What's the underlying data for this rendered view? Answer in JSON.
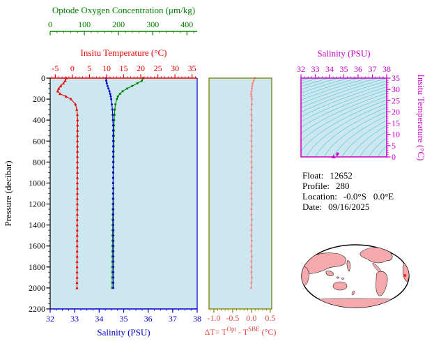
{
  "colors": {
    "page_bg": "#ffffff",
    "plot_bg": "#cde7f1",
    "oxygen": "#008200",
    "temperature": "#e60000",
    "pressure": "#000000",
    "salinity": "#0000cd",
    "delta_frame": "#7f7f00",
    "delta_text": "#e84545",
    "delta_curve": "#ff8585",
    "ts": "#cc00cc",
    "contour": "#58c8da",
    "map_land": "#f5a9ad",
    "map_outline": "#000000",
    "float_marker": "#ff2020"
  },
  "main_plot": {
    "oxygen_axis": {
      "label": "Optode Oxygen Concentration (μm/kg)",
      "min": 0,
      "max": 430,
      "ticks": [
        0,
        100,
        200,
        300,
        400
      ],
      "minor_step": 20,
      "color": "#008200"
    },
    "temperature_axis": {
      "label": "Insitu Temperature (°C)",
      "min": -6.5,
      "max": 36.5,
      "ticks": [
        -5,
        0,
        5,
        10,
        15,
        20,
        25,
        30,
        35
      ],
      "minor_step": 1,
      "color": "#e60000"
    },
    "pressure_axis": {
      "label": "Pressure (decibar)",
      "min": 0,
      "max": 2200,
      "ticks": [
        0,
        200,
        400,
        600,
        800,
        1000,
        1200,
        1400,
        1600,
        1800,
        2000,
        2200
      ],
      "minor_step": 50,
      "color": "#000000"
    },
    "salinity_axis": {
      "label": "Salinity (PSU)",
      "min": 32,
      "max": 38,
      "ticks": [
        32,
        33,
        34,
        35,
        36,
        37,
        38
      ],
      "minor_step": 0.25,
      "color": "#0000cd"
    }
  },
  "delta_plot": {
    "axis": {
      "min": -1.13,
      "max": 0.54,
      "ticks": [
        -1.0,
        -0.5,
        0.0,
        0.5
      ],
      "minor_step": 0.1,
      "decimals": 1,
      "color": "#7f7f00"
    },
    "title_parts": {
      "p1": "ΔT= T",
      "sup1": "Opt",
      "p2": " - T",
      "sup2": "SBE",
      "p3": " (°C)"
    }
  },
  "ts_plot": {
    "salinity_axis": {
      "label": "Salinity (PSU)",
      "min": 32,
      "max": 38,
      "ticks": [
        32,
        33,
        34,
        35,
        36,
        37,
        38
      ],
      "minor_step": 0.25,
      "color": "#cc00cc"
    },
    "temperature_axis": {
      "label": "Insitu Temperature (°C)",
      "min": 0,
      "max": 35,
      "ticks": [
        0,
        5,
        10,
        15,
        20,
        25,
        30,
        35
      ],
      "minor_step": 1,
      "color": "#cc00cc"
    },
    "sigma_contours": {
      "min": 18,
      "max": 30,
      "step": 0.5
    }
  },
  "info": {
    "float_label": "Float:",
    "float_value": "12652",
    "profile_label": "Profile:",
    "profile_value": "280",
    "location_label": "Location:",
    "location_lat": "-0.0°S",
    "location_lon": "0.0°E",
    "date_label": "Date:",
    "date_value": "09/16/2025"
  },
  "chart_data": [
    {
      "id": "profile-plot",
      "type": "line",
      "title": "Temperature, Salinity and Oxygen profiles vs Pressure",
      "y_axis": "Pressure (decibar)",
      "ylim": [
        0,
        2200
      ],
      "pressure_dbar": [
        0,
        25,
        50,
        75,
        100,
        125,
        150,
        175,
        200,
        250,
        300,
        350,
        400,
        450,
        500,
        550,
        600,
        650,
        700,
        750,
        800,
        850,
        900,
        950,
        1000,
        1050,
        1100,
        1150,
        1200,
        1250,
        1300,
        1350,
        1400,
        1450,
        1500,
        1550,
        1600,
        1650,
        1700,
        1750,
        1800,
        1850,
        1900,
        1950,
        2000
      ],
      "series": [
        {
          "name": "Optode Oxygen Concentration (μm/kg)",
          "axis": "oxygen",
          "color": "#008200",
          "marker": "square",
          "xlim": [
            0,
            430
          ],
          "values": [
            272,
            268,
            255,
            240,
            225,
            212,
            204,
            198,
            195,
            191,
            189,
            188,
            187,
            186.5,
            186.3,
            186.1,
            185.9,
            185.7,
            185.5,
            185.3,
            185.1,
            184.9,
            184.7,
            184.5,
            184.3,
            184.1,
            183.9,
            183.7,
            183.5,
            183.3,
            183.1,
            182.9,
            182.7,
            182.5,
            182.4,
            182.3,
            182.2,
            182.1,
            182.0,
            181.9,
            181.8,
            181.7,
            181.6,
            181.5,
            181.4
          ]
        },
        {
          "name": "Salinity (PSU)",
          "axis": "salinity",
          "color": "#0000cd",
          "marker": "circle",
          "xlim": [
            32,
            38
          ],
          "values": [
            34.28,
            34.29,
            34.31,
            34.34,
            34.38,
            34.42,
            34.45,
            34.47,
            34.49,
            34.52,
            34.54,
            34.55,
            34.56,
            34.57,
            34.57,
            34.57,
            34.57,
            34.57,
            34.57,
            34.57,
            34.57,
            34.57,
            34.57,
            34.57,
            34.57,
            34.575,
            34.575,
            34.575,
            34.575,
            34.575,
            34.575,
            34.575,
            34.575,
            34.58,
            34.58,
            34.58,
            34.58,
            34.58,
            34.58,
            34.58,
            34.58,
            34.58,
            34.58,
            34.58,
            34.58
          ]
        },
        {
          "name": "Insitu Temperature (°C)",
          "axis": "temperature",
          "color": "#e60000",
          "marker": "triangle",
          "xlim": [
            -6.5,
            36.5
          ],
          "values": [
            -1.8,
            -2.1,
            -2.6,
            -3.4,
            -4.0,
            -4.3,
            -3.6,
            -1.9,
            -0.4,
            0.9,
            1.3,
            1.45,
            1.5,
            1.5,
            1.5,
            1.49,
            1.49,
            1.48,
            1.48,
            1.47,
            1.47,
            1.46,
            1.46,
            1.45,
            1.45,
            1.44,
            1.44,
            1.43,
            1.43,
            1.42,
            1.42,
            1.41,
            1.41,
            1.4,
            1.4,
            1.39,
            1.39,
            1.38,
            1.38,
            1.37,
            1.37,
            1.36,
            1.36,
            1.35,
            1.35
          ]
        }
      ]
    },
    {
      "id": "delta-t-plot",
      "type": "line",
      "title": "ΔT = T(Opt) - T(SBE) (°C) vs Pressure",
      "xlim": [
        -1.13,
        0.54
      ],
      "pressure_dbar": [
        0,
        25,
        50,
        75,
        100,
        125,
        150,
        175,
        200,
        250,
        300,
        350,
        400,
        450,
        500,
        550,
        600,
        650,
        700,
        750,
        800,
        850,
        900,
        950,
        1000,
        1050,
        1100,
        1150,
        1200,
        1250,
        1300,
        1350,
        1400,
        1450,
        1500,
        1550,
        1600,
        1650,
        1700,
        1750,
        1800,
        1850,
        1900,
        1950,
        2000
      ],
      "series": [
        {
          "name": "ΔT (°C)",
          "color": "#ff8585",
          "marker": "circle",
          "values": [
            0.09,
            0.06,
            0.03,
            0.02,
            0.01,
            0.0,
            -0.01,
            0.0,
            0.01,
            0.01,
            0.0,
            0.0,
            0.01,
            0.0,
            0.01,
            0.0,
            0.0,
            0.01,
            0.0,
            0.0,
            0.0,
            0.01,
            0.0,
            0.0,
            0.01,
            0.0,
            0.0,
            0.0,
            0.01,
            0.0,
            0.0,
            0.01,
            0.0,
            0.0,
            0.0,
            0.01,
            0.0,
            0.0,
            0.01,
            0.0,
            0.0,
            0.0,
            0.01,
            0.0,
            -0.01
          ]
        }
      ]
    },
    {
      "id": "ts-diagram",
      "type": "scatter",
      "title": "Salinity (PSU) vs Insitu Temperature (°C)",
      "xlim": [
        32,
        38
      ],
      "ylim": [
        0,
        35
      ],
      "points": "derived from profile-plot salinity & temperature series",
      "contours": "sigma-theta density contours, 18 to 30 by 0.5"
    }
  ]
}
